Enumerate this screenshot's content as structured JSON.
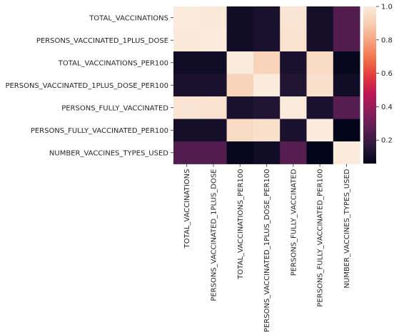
{
  "chart_data": {
    "type": "heatmap",
    "title": "",
    "xlabel": "",
    "ylabel": "",
    "row_labels": [
      "TOTAL_VACCINATIONS",
      "PERSONS_VACCINATED_1PLUS_DOSE",
      "TOTAL_VACCINATIONS_PER100",
      "PERSONS_VACCINATED_1PLUS_DOSE_PER100",
      "PERSONS_FULLY_VACCINATED",
      "PERSONS_FULLY_VACCINATED_PER100",
      "NUMBER_VACCINES_TYPES_USED"
    ],
    "col_labels": [
      "TOTAL_VACCINATIONS",
      "PERSONS_VACCINATED_1PLUS_DOSE",
      "TOTAL_VACCINATIONS_PER100",
      "PERSONS_VACCINATED_1PLUS_DOSE_PER100",
      "PERSONS_FULLY_VACCINATED",
      "PERSONS_FULLY_VACCINATED_PER100",
      "NUMBER_VACCINES_TYPES_USED"
    ],
    "values": [
      [
        1.0,
        0.99,
        0.1,
        0.12,
        0.98,
        0.11,
        0.25
      ],
      [
        0.99,
        1.0,
        0.1,
        0.12,
        0.97,
        0.11,
        0.25
      ],
      [
        0.1,
        0.1,
        1.0,
        0.92,
        0.12,
        0.94,
        0.07
      ],
      [
        0.12,
        0.12,
        0.92,
        1.0,
        0.14,
        0.96,
        0.1
      ],
      [
        0.98,
        0.97,
        0.12,
        0.14,
        1.0,
        0.12,
        0.26
      ],
      [
        0.11,
        0.11,
        0.94,
        0.96,
        0.12,
        1.0,
        0.06
      ],
      [
        0.25,
        0.25,
        0.07,
        0.1,
        0.26,
        0.06,
        1.0
      ]
    ],
    "colorbar": {
      "min": 0.06,
      "max": 1.0,
      "ticks": [
        0.2,
        0.4,
        0.6,
        0.8,
        1.0
      ],
      "tick_labels": [
        "0.2",
        "0.4",
        "0.6",
        "0.8",
        "1.0"
      ],
      "colormap": "rocket",
      "colormap_stops": [
        "#03051a",
        "#2b1a3c",
        "#5a1e52",
        "#8b1f5b",
        "#bd1655",
        "#e33a3c",
        "#f2714a",
        "#f6a27e",
        "#f8cdb0",
        "#faebdd"
      ]
    }
  }
}
